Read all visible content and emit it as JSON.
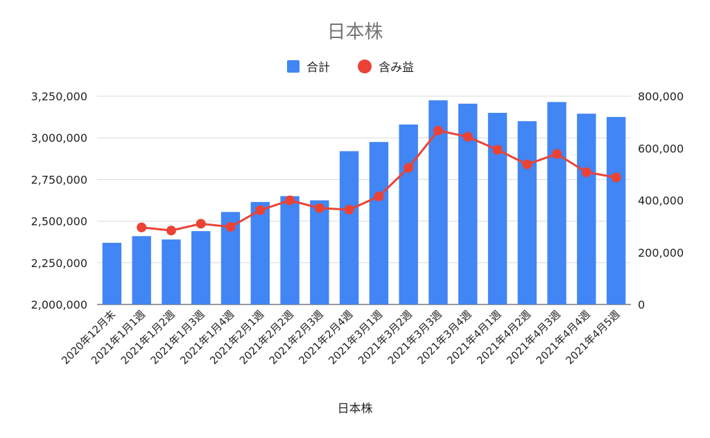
{
  "chart_data": {
    "type": "bar+line",
    "title": "日本株",
    "xlabel": "日本株",
    "categories": [
      "2020年12月末",
      "2021年1月1週",
      "2021年1月2週",
      "2021年1月3週",
      "2021年1月4週",
      "2021年2月1週",
      "2021年2月2週",
      "2021年2月3週",
      "2021年2月4週",
      "2021年3月1週",
      "2021年3月2週",
      "2021年3月3週",
      "2021年3月4週",
      "2021年4月1週",
      "2021年4月2週",
      "2021年4月3週",
      "2021年4月4週",
      "2021年4月5週"
    ],
    "series": [
      {
        "name": "合計",
        "type": "bar",
        "axis": "left",
        "color": "#4285f4",
        "values": [
          2370000,
          2410000,
          2390000,
          2440000,
          2555000,
          2615000,
          2650000,
          2625000,
          2920000,
          2975000,
          3080000,
          3225000,
          3205000,
          3150000,
          3100000,
          3215000,
          3145000,
          3125000
        ]
      },
      {
        "name": "含み益",
        "type": "line",
        "axis": "right",
        "color": "#ea4335",
        "values": [
          null,
          296000,
          284000,
          310000,
          298000,
          362000,
          400000,
          370000,
          364000,
          415000,
          525000,
          668000,
          644000,
          594000,
          538000,
          578000,
          508000,
          488000
        ]
      }
    ],
    "left_axis": {
      "min": 2000000,
      "max": 3250000,
      "ticks": [
        "2,000,000",
        "2,250,000",
        "2,500,000",
        "2,750,000",
        "3,000,000",
        "3,250,000"
      ]
    },
    "right_axis": {
      "min": 0,
      "max": 800000,
      "ticks": [
        "0",
        "200,000",
        "400,000",
        "600,000",
        "800,000"
      ]
    },
    "legend": {
      "position": "top",
      "items": [
        {
          "name": "合計",
          "color": "#4285f4",
          "shape": "square"
        },
        {
          "name": "含み益",
          "color": "#ea4335",
          "shape": "circle"
        }
      ]
    },
    "grid": true
  }
}
